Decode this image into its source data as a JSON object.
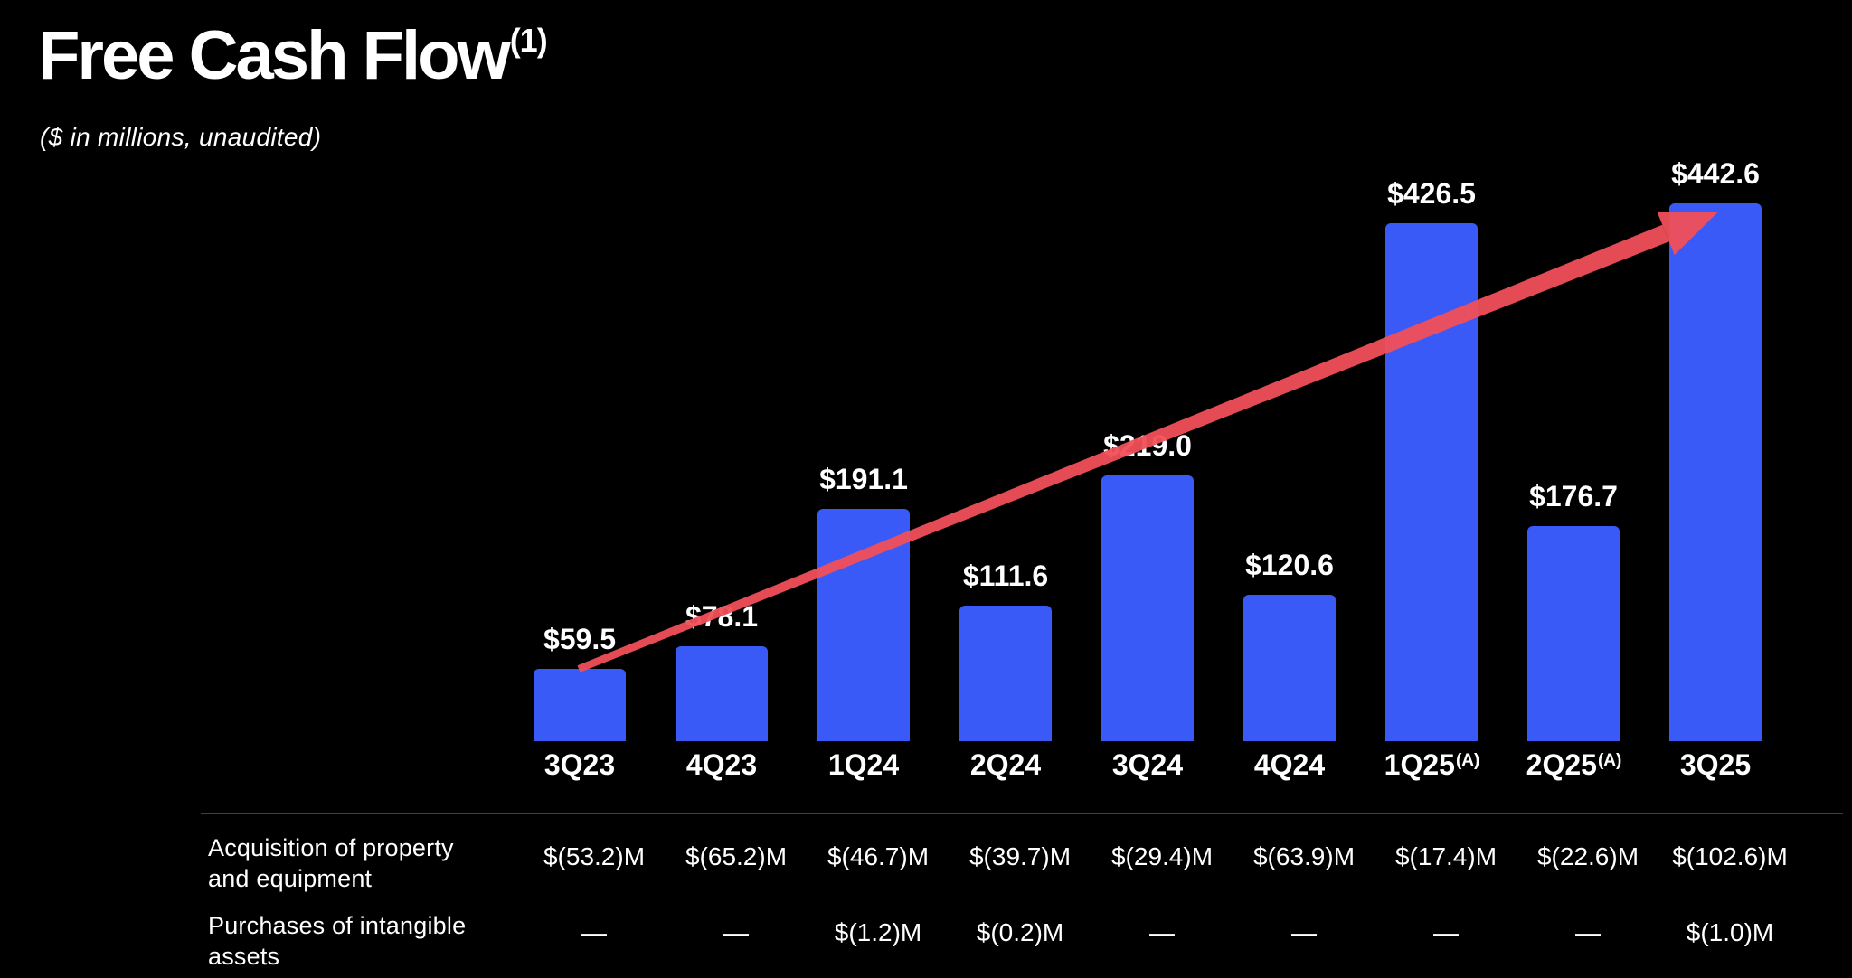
{
  "slide": {
    "title": "Free Cash Flow",
    "title_superscript": "(1)",
    "subtitle": "($ in millions, unaudited)"
  },
  "chart_data": {
    "type": "bar",
    "title": "Free Cash Flow",
    "subtitle": "($ in millions, unaudited)",
    "categories": [
      "3Q23",
      "4Q23",
      "1Q24",
      "2Q24",
      "3Q24",
      "4Q24",
      "1Q25",
      "2Q25",
      "3Q25"
    ],
    "category_superscripts": [
      "",
      "",
      "",
      "",
      "",
      "",
      "(A)",
      "(A)",
      ""
    ],
    "values": [
      59.5,
      78.1,
      191.1,
      111.6,
      219.0,
      120.6,
      426.5,
      176.7,
      442.6
    ],
    "value_labels": [
      "$59.5",
      "$78.1",
      "$191.1",
      "$111.6",
      "$219.0",
      "$120.6",
      "$426.5",
      "$176.7",
      "$442.6"
    ],
    "xlabel": "",
    "ylabel": "",
    "ylim": [
      0,
      450
    ],
    "grid": "off",
    "legend": "none",
    "bar_color": "#3a5af7",
    "arrow_color": "#f14f58",
    "background_color": "#000000",
    "text_color": "#ffffff",
    "annotation": "upward trend arrow from 3Q23 bar to 3Q25 bar"
  },
  "table": {
    "rows": [
      {
        "label": "Acquisition of property and equipment",
        "values": [
          "$(53.2)M",
          "$(65.2)M",
          "$(46.7)M",
          "$(39.7)M",
          "$(29.4)M",
          "$(63.9)M",
          "$(17.4)M",
          "$(22.6)M",
          "$(102.6)M"
        ]
      },
      {
        "label": "Purchases of intangible assets",
        "values": [
          "—",
          "—",
          "$(1.2)M",
          "$(0.2)M",
          "—",
          "—",
          "—",
          "—",
          "$(1.0)M"
        ]
      }
    ]
  }
}
